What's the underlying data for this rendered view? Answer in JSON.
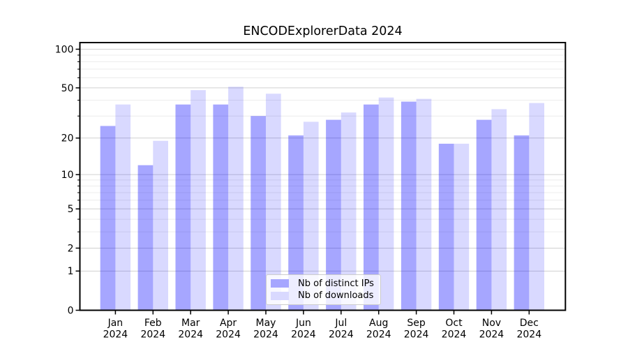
{
  "chart_data": {
    "type": "bar",
    "title": "ENCODExplorerData 2024",
    "categories": [
      "Jan 2024",
      "Feb 2024",
      "Mar 2024",
      "Apr 2024",
      "May 2024",
      "Jun 2024",
      "Jul 2024",
      "Aug 2024",
      "Sep 2024",
      "Oct 2024",
      "Nov 2024",
      "Dec 2024"
    ],
    "series": [
      {
        "name": "Nb of distinct IPs",
        "color": "#a6a6ff",
        "color_rgba": "rgba(0,0,255,0.35)",
        "values": [
          25,
          12,
          37,
          37,
          30,
          21,
          28,
          37,
          39,
          18,
          28,
          21
        ]
      },
      {
        "name": "Nb of downloads",
        "color": "#d9d9ff",
        "color_rgba": "rgba(0,0,255,0.15)",
        "values": [
          37,
          19,
          48,
          51,
          45,
          27,
          32,
          42,
          41,
          18,
          34,
          38
        ]
      }
    ],
    "xlabel": "",
    "ylabel": "",
    "yscale": "log10(value+1)",
    "ylim": [
      0,
      117
    ],
    "yticks": [
      0,
      1,
      2,
      5,
      10,
      20,
      50,
      100
    ],
    "yticks_minor": [
      3,
      4,
      6,
      7,
      8,
      9,
      30,
      40,
      60,
      70,
      80,
      90
    ],
    "grid": "on",
    "legend_position": "lower center"
  },
  "legend": {
    "items": [
      {
        "label": "Nb of distinct IPs",
        "swatch": "#a6a6ff"
      },
      {
        "label": "Nb of downloads",
        "swatch": "#d9d9ff"
      }
    ]
  },
  "colors": {
    "grid_major": "#d0d0d0",
    "grid_minor": "#ececec",
    "axis": "#000000",
    "text": "#000000",
    "legend_border": "#cccccc",
    "background": "#ffffff"
  }
}
